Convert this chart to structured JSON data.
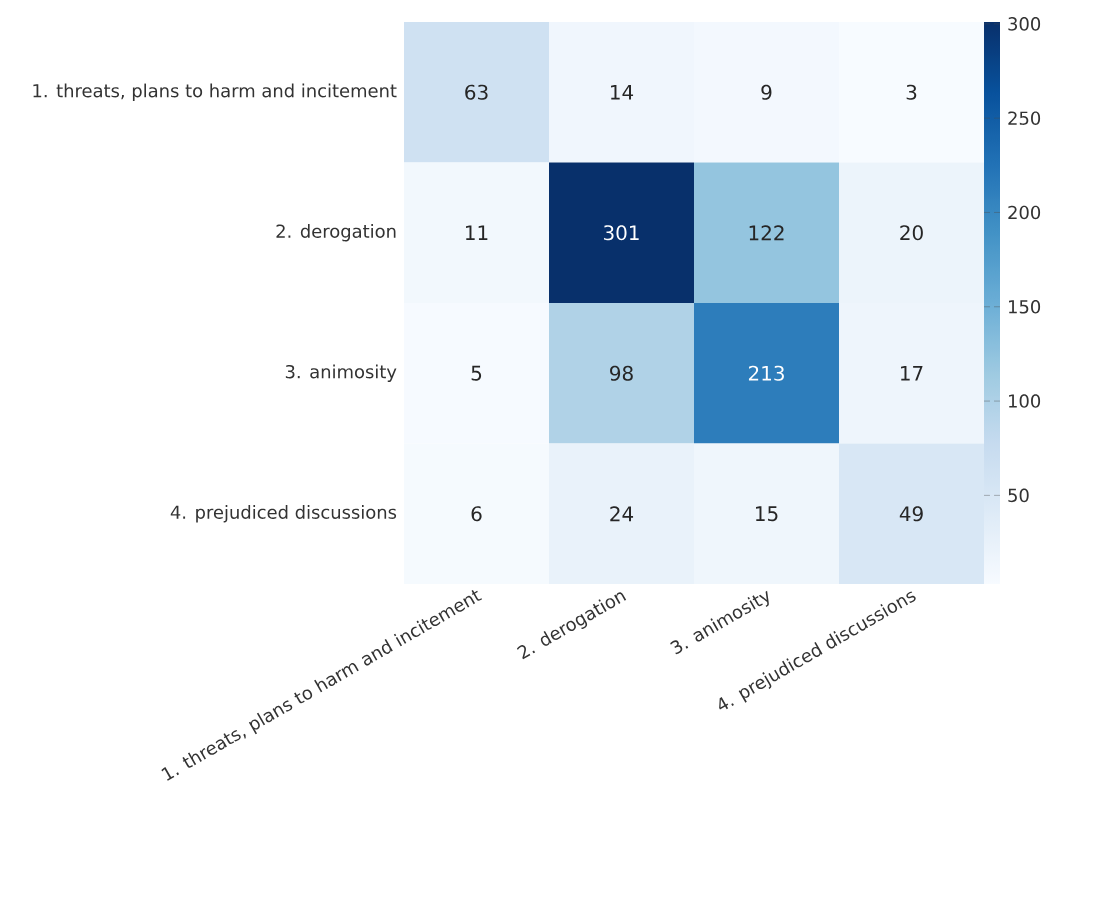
{
  "chart_data": {
    "type": "heatmap",
    "categories": [
      "1. threats, plans to harm and incitement",
      "2. derogation",
      "3. animosity",
      "4. prejudiced discussions"
    ],
    "y_categories": [
      "1. threats, plans to harm and incitement",
      "2. derogation",
      "3. animosity",
      "4. prejudiced discussions"
    ],
    "cells": [
      [
        63,
        14,
        9,
        3
      ],
      [
        11,
        301,
        122,
        20
      ],
      [
        5,
        98,
        213,
        17
      ],
      [
        6,
        24,
        15,
        49
      ]
    ],
    "clim": [
      3,
      301
    ],
    "cticks": [
      50,
      100,
      150,
      200,
      250,
      300
    ],
    "data_labels": true
  }
}
